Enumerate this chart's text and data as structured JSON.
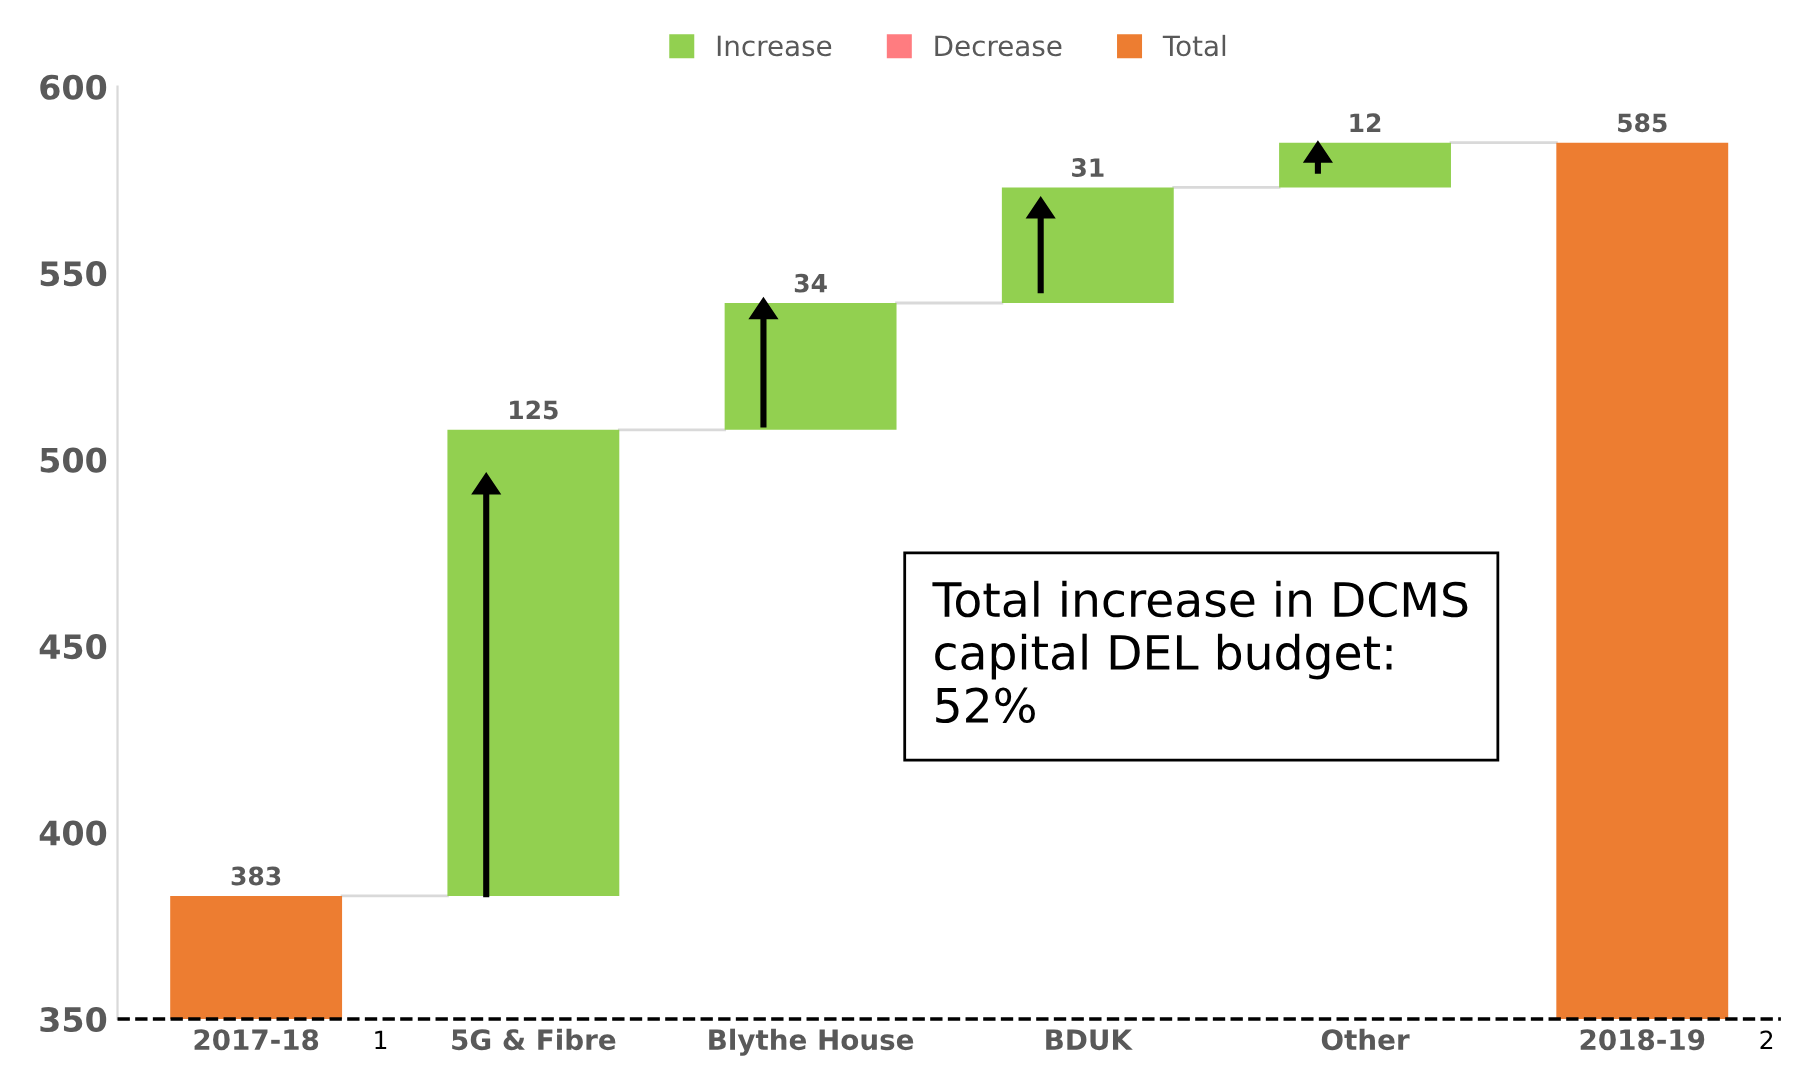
{
  "chart_data": {
    "type": "bar",
    "categories": [
      "2017-18",
      "5G & Fibre",
      "Blythe House",
      "BDUK",
      "Other",
      "2018-19"
    ],
    "series": [
      {
        "name": "Increase",
        "color": "#92d050",
        "values": [
          null,
          125,
          34,
          31,
          12,
          null
        ],
        "base": [
          null,
          383,
          508,
          542,
          573,
          null
        ]
      },
      {
        "name": "Decrease",
        "color": "#ff7c80",
        "values": [
          null,
          null,
          null,
          null,
          null,
          null
        ]
      },
      {
        "name": "Total",
        "color": "#ed7d31",
        "values": [
          383,
          null,
          null,
          null,
          null,
          585
        ]
      }
    ],
    "ylim": [
      350,
      600
    ],
    "yticks": [
      350,
      400,
      450,
      500,
      550,
      600
    ],
    "ref_lines": [
      {
        "axis": "y",
        "value": 350,
        "color": "#000000",
        "line_style": "dashed"
      }
    ],
    "data_labels": true,
    "legend": "top",
    "grid": false,
    "annotations": [
      "Total increase in DCMS capital DEL budget: 52%",
      "1",
      "2"
    ]
  }
}
